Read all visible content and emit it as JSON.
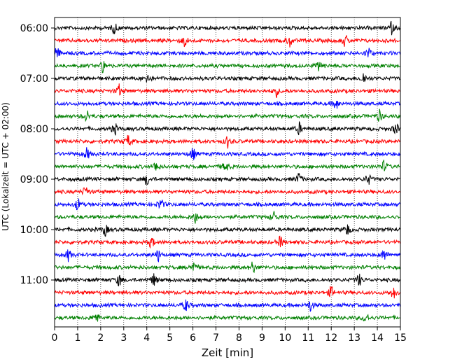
{
  "chart_data": {
    "type": "line",
    "title": "",
    "xlabel": "Zeit  [min]",
    "ylabel": "UTC (Lokalzeit = UTC + 02:00)",
    "xlim": [
      0,
      15
    ],
    "x_ticks": [
      0,
      1,
      2,
      3,
      4,
      5,
      6,
      7,
      8,
      9,
      10,
      11,
      12,
      13,
      14,
      15
    ],
    "x_tick_labels": [
      "0",
      "1",
      "2",
      "3",
      "4",
      "5",
      "6",
      "7",
      "8",
      "9",
      "10",
      "11",
      "12",
      "13",
      "14",
      "15"
    ],
    "x_grid": "dotted vertical",
    "y_tick_labels": [
      "06:00",
      "07:00",
      "08:00",
      "09:00",
      "10:00",
      "11:00"
    ],
    "trace_interval_minutes": 15,
    "color_cycle": [
      "#000000",
      "#ff0000",
      "#0000ff",
      "#008000"
    ],
    "traces": [
      {
        "start": "06:00",
        "color": "#000000",
        "events_min": [
          2.6,
          14.6
        ]
      },
      {
        "start": "06:15",
        "color": "#ff0000",
        "events_min": [
          5.65,
          10.2,
          12.6
        ]
      },
      {
        "start": "06:30",
        "color": "#0000ff",
        "events_min": [
          0.1,
          13.6
        ]
      },
      {
        "start": "06:45",
        "color": "#008000",
        "events_min": [
          2.1,
          11.5
        ]
      },
      {
        "start": "07:00",
        "color": "#000000",
        "events_min": [
          4.0,
          13.4
        ]
      },
      {
        "start": "07:15",
        "color": "#ff0000",
        "events_min": [
          2.8,
          9.6
        ]
      },
      {
        "start": "07:30",
        "color": "#0000ff",
        "events_min": [
          12.2
        ]
      },
      {
        "start": "07:45",
        "color": "#008000",
        "events_min": [
          1.4,
          14.1
        ]
      },
      {
        "start": "08:00",
        "color": "#000000",
        "events_min": [
          2.6,
          10.6,
          14.8
        ]
      },
      {
        "start": "08:15",
        "color": "#ff0000",
        "events_min": [
          3.2,
          7.5
        ]
      },
      {
        "start": "08:30",
        "color": "#0000ff",
        "events_min": [
          1.4,
          6.0
        ]
      },
      {
        "start": "08:45",
        "color": "#008000",
        "events_min": [
          4.4,
          7.4,
          14.3
        ]
      },
      {
        "start": "09:00",
        "color": "#000000",
        "events_min": [
          4.0,
          10.6,
          13.6
        ]
      },
      {
        "start": "09:15",
        "color": "#ff0000",
        "events_min": [
          1.35
        ]
      },
      {
        "start": "09:30",
        "color": "#0000ff",
        "events_min": [
          1.0,
          4.6
        ]
      },
      {
        "start": "09:45",
        "color": "#008000",
        "events_min": [
          6.1,
          9.5
        ]
      },
      {
        "start": "10:00",
        "color": "#000000",
        "events_min": [
          2.2,
          12.7
        ]
      },
      {
        "start": "10:15",
        "color": "#ff0000",
        "events_min": [
          4.2,
          9.8
        ]
      },
      {
        "start": "10:30",
        "color": "#0000ff",
        "events_min": [
          0.6,
          4.5,
          14.3
        ]
      },
      {
        "start": "10:45",
        "color": "#008000",
        "events_min": [
          6.0,
          8.6
        ]
      },
      {
        "start": "11:00",
        "color": "#000000",
        "events_min": [
          2.8,
          4.3,
          13.2
        ]
      },
      {
        "start": "11:15",
        "color": "#ff0000",
        "events_min": [
          12.0,
          14.7
        ]
      },
      {
        "start": "11:30",
        "color": "#0000ff",
        "events_min": [
          5.7,
          11.1
        ]
      },
      {
        "start": "11:45",
        "color": "#008000",
        "events_min": [
          1.8,
          13.5
        ]
      }
    ]
  }
}
